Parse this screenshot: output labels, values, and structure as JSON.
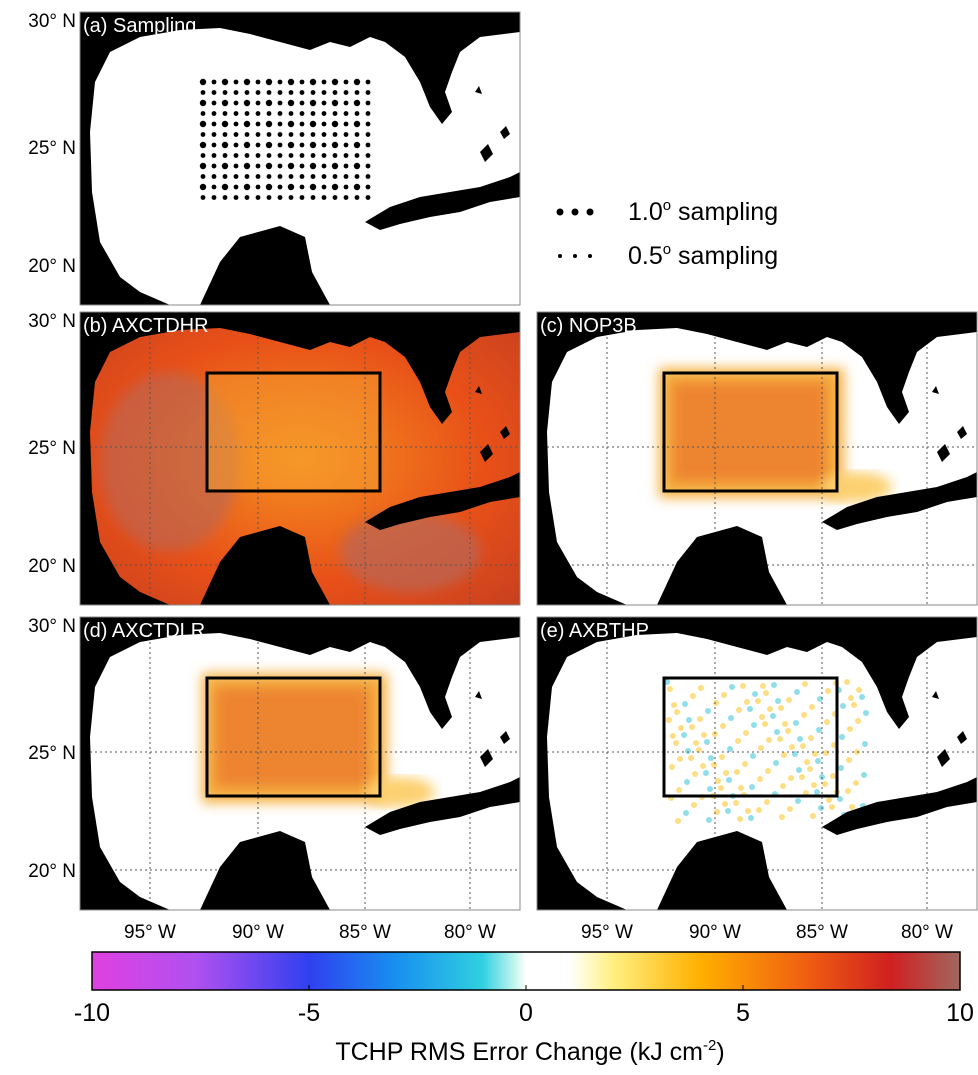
{
  "panels": [
    {
      "label": "(a) Sampling"
    },
    {
      "label": "(b) AXCTDHR"
    },
    {
      "label": "(c) NOP3B"
    },
    {
      "label": "(d) AXCTDLR"
    },
    {
      "label": "(e) AXBTHP"
    }
  ],
  "lat_labels": [
    "30° N",
    "25° N",
    "20° N"
  ],
  "lon_labels": [
    "95° W",
    "90° W",
    "85° W",
    "80° W"
  ],
  "legend": [
    {
      "text": "1.0",
      "sup": "o",
      "rest": " sampling"
    },
    {
      "text": "0.5",
      "sup": "o",
      "rest": " sampling"
    }
  ],
  "colorbar": {
    "lim": [
      -10,
      10
    ],
    "ticks": [
      -10,
      -5,
      0,
      5,
      10
    ],
    "title": {
      "text": "TCHP RMS Error Change (kJ cm",
      "sup": "-2",
      "rest": ")"
    }
  }
}
